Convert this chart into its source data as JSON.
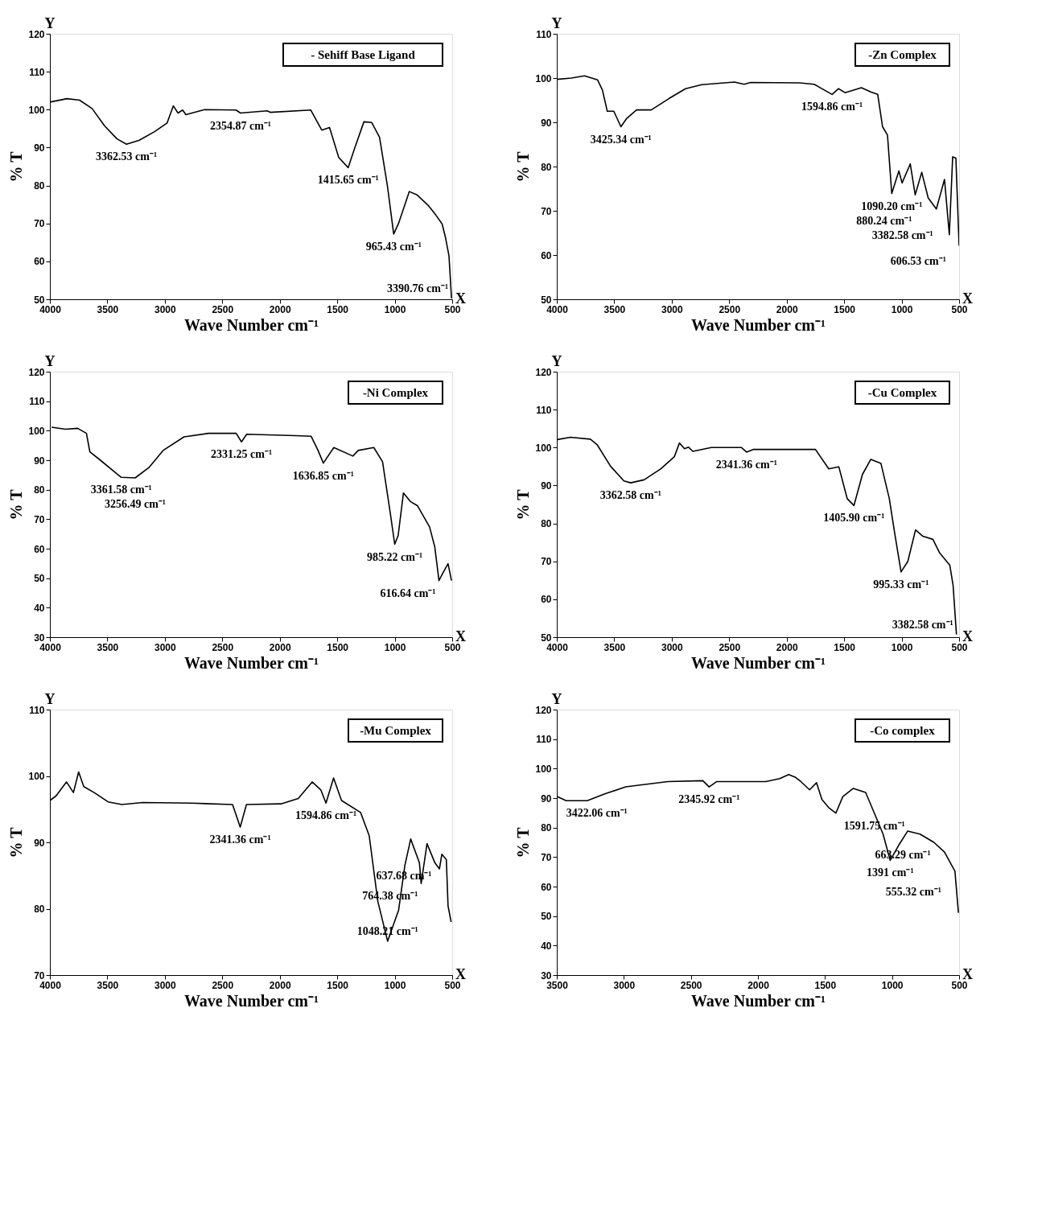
{
  "chart_data": [
    {
      "type": "line",
      "xlabel": "Wave Number cm⁻¹",
      "ylabel": "% T",
      "xlim": [
        4000,
        500
      ],
      "ylim": [
        50,
        120
      ],
      "xticks": [
        4000,
        3500,
        3000,
        2500,
        2000,
        1500,
        1000,
        500
      ],
      "yticks": [
        50,
        60,
        70,
        80,
        90,
        100,
        110,
        120
      ],
      "legend": "top right",
      "series": [
        {
          "name": "- Sehiff Base Ligand",
          "color": "#000000",
          "x": [
            4000,
            3850,
            3742,
            3633,
            3524,
            3416,
            3334,
            3225,
            3089,
            2980,
            2926,
            2885,
            2845,
            2817,
            2654,
            2382,
            2341,
            2110,
            2083,
            1730,
            1635,
            1567,
            1487,
            1405,
            1351,
            1268,
            1200,
            1132,
            1063,
            1009,
            968,
            873,
            805,
            710,
            642,
            588,
            560,
            528,
            506
          ],
          "values": [
            102.0,
            102.9,
            102.5,
            100.3,
            95.7,
            92.3,
            90.9,
            91.9,
            94.2,
            96.5,
            101.0,
            99.1,
            99.9,
            98.7,
            100.0,
            99.9,
            99.1,
            99.7,
            99.3,
            99.9,
            94.6,
            95.3,
            87.4,
            84.7,
            89.6,
            96.8,
            96.6,
            92.7,
            79.8,
            67.2,
            69.9,
            78.4,
            77.5,
            74.8,
            72.2,
            69.9,
            66.5,
            61.5,
            50.2
          ]
        }
      ],
      "annotations": [
        "Y",
        "X",
        {
          "text": "3362.53 cm⁻¹",
          "x": 3334,
          "y": 90.9
        },
        {
          "text": "2354.87 cm⁻¹",
          "x": 2341,
          "y": 99.1
        },
        {
          "text": "1415.65 cm⁻¹",
          "x": 1405,
          "y": 84.7
        },
        {
          "text": "965.43 cm⁻¹",
          "x": 1009,
          "y": 67.2
        },
        {
          "text": "3390.76 cm⁻¹",
          "x": 506,
          "y": 50.2
        }
      ]
    },
    {
      "type": "line",
      "xlabel": "Wave Number cm⁻¹",
      "ylabel": "% T",
      "xlim": [
        4000,
        500
      ],
      "ylim": [
        50,
        110
      ],
      "xticks": [
        4000,
        3500,
        3000,
        2500,
        2000,
        1500,
        1000,
        500
      ],
      "yticks": [
        50,
        60,
        70,
        80,
        90,
        100,
        110
      ],
      "legend": "top right",
      "series": [
        {
          "name": "-Zn Complex",
          "color": "#000000",
          "x": [
            4000,
            3872,
            3759,
            3646,
            3603,
            3561,
            3504,
            3442,
            3391,
            3306,
            3178,
            3022,
            2880,
            2739,
            2455,
            2370,
            2314,
            1888,
            1761,
            1605,
            1549,
            1492,
            1350,
            1265,
            1208,
            1166,
            1123,
            1086,
            1024,
            996,
            925,
            882,
            825,
            769,
            698,
            627,
            585,
            556,
            528,
            500
          ],
          "values": [
            99.7,
            100.0,
            100.5,
            99.6,
            97.3,
            92.5,
            92.5,
            89.0,
            90.9,
            92.8,
            92.8,
            95.4,
            97.6,
            98.5,
            99.1,
            98.6,
            99.0,
            98.9,
            98.6,
            96.3,
            97.6,
            96.7,
            97.8,
            96.8,
            96.3,
            89.0,
            87.1,
            73.9,
            79.0,
            76.3,
            80.6,
            73.6,
            78.7,
            72.9,
            70.4,
            77.1,
            64.6,
            82.2,
            81.9,
            62.1
          ]
        }
      ],
      "annotations": [
        "Y",
        "X",
        {
          "text": "3425.34 cm⁻¹",
          "x": 3442,
          "y": 89.0
        },
        {
          "text": "1594.86 cm⁻¹",
          "x": 1605,
          "y": 96.3
        },
        {
          "text": "1090.20 cm⁻¹",
          "x": 1086,
          "y": 73.9
        },
        {
          "text": "880.24 cm⁻¹",
          "x": 882,
          "y": 73.6
        },
        {
          "text": "3382.58 cm⁻¹",
          "x": 698,
          "y": 70.4
        },
        {
          "text": "606.53 cm⁻¹",
          "x": 585,
          "y": 64.6
        }
      ]
    },
    {
      "type": "line",
      "xlabel": "Wave Number cm⁻¹",
      "ylabel": "% T",
      "xlim": [
        4000,
        500
      ],
      "ylim": [
        30,
        120
      ],
      "xticks": [
        4000,
        3500,
        3000,
        2500,
        2000,
        1500,
        1000,
        500
      ],
      "yticks": [
        30,
        40,
        50,
        60,
        70,
        80,
        90,
        100,
        110,
        120
      ],
      "legend": "top right",
      "series": [
        {
          "name": "-Ni Complex",
          "color": "#000000",
          "x": [
            3985,
            3864,
            3758,
            3682,
            3652,
            3561,
            3439,
            3379,
            3258,
            3136,
            3015,
            2833,
            2621,
            2379,
            2333,
            2288,
            1864,
            1727,
            1667,
            1621,
            1530,
            1364,
            1318,
            1182,
            1106,
            1039,
            1000,
            970,
            924,
            864,
            803,
            697,
            652,
            615,
            576,
            536,
            506
          ],
          "values": [
            101.2,
            100.5,
            100.8,
            99.1,
            92.8,
            90.0,
            86.1,
            84.2,
            84.0,
            87.6,
            93.3,
            97.9,
            99.1,
            99.1,
            96.2,
            98.8,
            98.3,
            98.1,
            93.3,
            89.0,
            94.3,
            91.4,
            93.3,
            94.3,
            89.5,
            72.2,
            61.5,
            64.5,
            78.9,
            76.0,
            74.6,
            67.4,
            60.7,
            49.2,
            52.1,
            54.9,
            49.2
          ]
        }
      ],
      "annotations": [
        "Y",
        "X",
        {
          "text": "3361.58 cm⁻¹",
          "x": 3379,
          "y": 84.2
        },
        {
          "text": "3256.49 cm⁻¹",
          "x": 3258,
          "y": 84.0
        },
        {
          "text": "2331.25 cm⁻¹",
          "x": 2333,
          "y": 96.2
        },
        {
          "text": "1636.85 cm⁻¹",
          "x": 1621,
          "y": 89.0
        },
        {
          "text": "985.22 cm⁻¹",
          "x": 1000,
          "y": 61.5
        },
        {
          "text": "616.64 cm⁻¹",
          "x": 615,
          "y": 49.2
        }
      ]
    },
    {
      "type": "line",
      "xlabel": "Wave Number cm⁻¹",
      "ylabel": "% T",
      "xlim": [
        4000,
        500
      ],
      "ylim": [
        50,
        120
      ],
      "xticks": [
        4000,
        3500,
        3000,
        2500,
        2000,
        1500,
        1000,
        500
      ],
      "yticks": [
        50,
        60,
        70,
        80,
        90,
        100,
        110,
        120
      ],
      "legend": "top right",
      "series": [
        {
          "name": "-Cu Complex",
          "color": "#000000",
          "x": [
            3994,
            3883,
            3708,
            3650,
            3533,
            3416,
            3357,
            3240,
            3094,
            2977,
            2933,
            2889,
            2854,
            2816,
            2656,
            2393,
            2349,
            2291,
            1750,
            1634,
            1546,
            1473,
            1415,
            1341,
            1268,
            1180,
            1107,
            1063,
            1005,
            946,
            879,
            815,
            728,
            669,
            581,
            552,
            523
          ],
          "values": [
            102.1,
            102.7,
            102.2,
            100.8,
            95.1,
            91.2,
            90.7,
            91.5,
            94.4,
            97.6,
            101.2,
            99.7,
            100.1,
            99.0,
            100.0,
            100.0,
            98.8,
            99.5,
            99.5,
            94.4,
            94.9,
            86.5,
            84.7,
            92.9,
            96.9,
            95.8,
            86.5,
            77.9,
            67.2,
            70.0,
            78.3,
            76.6,
            75.8,
            72.2,
            69.0,
            63.6,
            50.7
          ]
        }
      ],
      "annotations": [
        "Y",
        "X",
        {
          "text": "3362.58 cm⁻¹",
          "x": 3357,
          "y": 90.7
        },
        {
          "text": "2341.36 cm⁻¹",
          "x": 2349,
          "y": 98.8
        },
        {
          "text": "1405.90 cm⁻¹",
          "x": 1415,
          "y": 84.7
        },
        {
          "text": "995.33 cm⁻¹",
          "x": 1005,
          "y": 67.2
        },
        {
          "text": "3382.58 cm⁻¹",
          "x": 523,
          "y": 50.7
        }
      ]
    },
    {
      "type": "line",
      "xlabel": "Wave Number cm⁻¹",
      "ylabel": "% T",
      "xlim": [
        4000,
        500
      ],
      "ylim": [
        70,
        110
      ],
      "xticks": [
        4000,
        3500,
        3000,
        2500,
        2000,
        1500,
        1000,
        500
      ],
      "yticks": [
        70,
        80,
        90,
        100,
        110
      ],
      "legend": "top right",
      "series": [
        {
          "name": "-Mu Complex",
          "color": "#000000",
          "x": [
            4000,
            3946,
            3856,
            3795,
            3750,
            3705,
            3615,
            3494,
            3374,
            3193,
            2772,
            2411,
            2344,
            2290,
            1989,
            1839,
            1718,
            1643,
            1598,
            1532,
            1463,
            1297,
            1222,
            1147,
            1062,
            966,
            912,
            861,
            785,
            770,
            719,
            650,
            611,
            590,
            551,
            536,
            509
          ],
          "values": [
            96.3,
            97.0,
            99.1,
            97.5,
            100.6,
            98.4,
            97.5,
            96.1,
            95.7,
            96.0,
            95.9,
            95.7,
            92.3,
            95.7,
            95.8,
            96.6,
            99.1,
            97.9,
            95.9,
            99.7,
            96.3,
            94.5,
            91.0,
            81.1,
            75.1,
            79.8,
            86.5,
            90.5,
            86.9,
            83.8,
            89.8,
            86.9,
            86.0,
            88.2,
            87.4,
            80.4,
            78.0
          ]
        }
      ],
      "annotations": [
        "Y",
        "X",
        {
          "text": "2341.36 cm⁻¹",
          "x": 2344,
          "y": 92.3
        },
        {
          "text": "1594.86 cm⁻¹",
          "x": 1598,
          "y": 95.9
        },
        {
          "text": "637.68 cm⁻¹",
          "x": 650,
          "y": 86.9
        },
        {
          "text": "764.38 cm⁻¹",
          "x": 770,
          "y": 83.8
        },
        {
          "text": "1048.21 cm⁻¹",
          "x": 1062,
          "y": 75.1
        }
      ]
    },
    {
      "type": "line",
      "xlabel": "Wave Number cm⁻¹",
      "ylabel": "% T",
      "xlim": [
        3500,
        500
      ],
      "ylim": [
        30,
        120
      ],
      "xticks": [
        3500,
        3000,
        2500,
        2000,
        1500,
        1000,
        500
      ],
      "yticks": [
        30,
        40,
        50,
        60,
        70,
        80,
        90,
        100,
        110,
        120
      ],
      "legend": "top right",
      "series": [
        {
          "name": "-Co complex",
          "color": "#000000",
          "x": [
            3495,
            3430,
            3273,
            3142,
            2986,
            2829,
            2672,
            2411,
            2364,
            2307,
            1941,
            1837,
            1771,
            1719,
            1680,
            1615,
            1563,
            1523,
            1471,
            1419,
            1367,
            1289,
            1197,
            1132,
            1067,
            1014,
            949,
            884,
            792,
            688,
            609,
            531,
            505
          ],
          "values": [
            90.5,
            89.1,
            89.1,
            91.4,
            93.8,
            94.7,
            95.6,
            95.9,
            93.8,
            95.6,
            95.6,
            96.6,
            98.0,
            97.0,
            95.6,
            92.8,
            95.2,
            89.5,
            86.7,
            84.9,
            90.5,
            93.3,
            91.9,
            84.9,
            77.8,
            68.9,
            74.1,
            78.8,
            77.8,
            75.0,
            71.7,
            65.2,
            51.1
          ]
        }
      ],
      "annotations": [
        "Y",
        "X",
        {
          "text": "3422.06 cm⁻¹",
          "x": 3430,
          "y": 89.1
        },
        {
          "text": "2345.92 cm⁻¹",
          "x": 2364,
          "y": 93.8
        },
        {
          "text": "1591.75 cm⁻¹",
          "x": 1132,
          "y": 84.9
        },
        {
          "text": "1391 cm⁻¹",
          "x": 1014,
          "y": 68.9
        },
        {
          "text": "663.29 cm⁻¹",
          "x": 688,
          "y": 75.0
        },
        {
          "text": "555.32 cm⁻¹",
          "x": 609,
          "y": 71.7
        }
      ]
    }
  ]
}
